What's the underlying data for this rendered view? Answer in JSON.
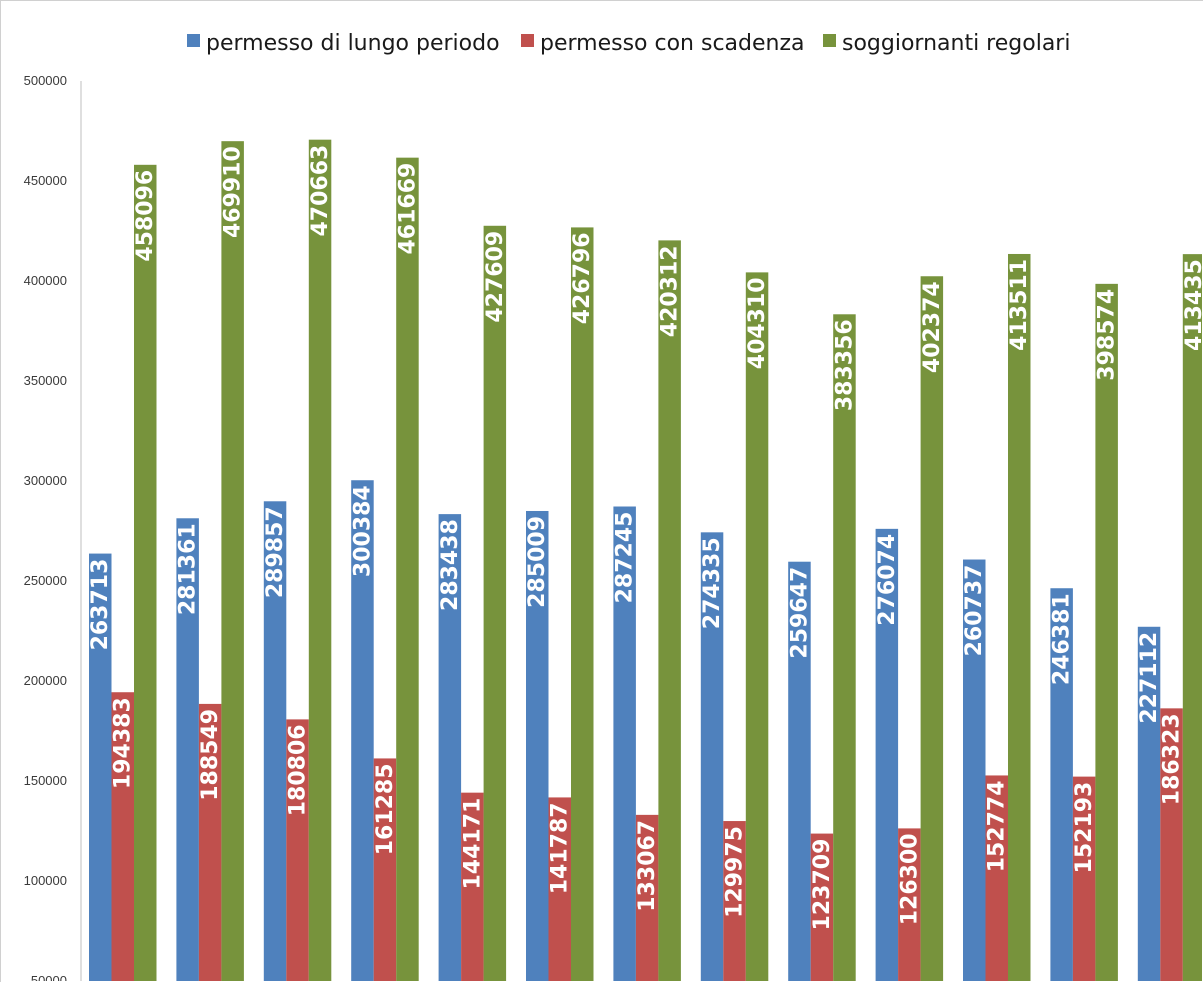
{
  "chart_data": {
    "type": "bar",
    "categories": [
      "",
      "",
      "",
      "",
      "",
      "",
      "",
      "",
      "",
      "",
      "",
      "",
      ""
    ],
    "series": [
      {
        "name": "permesso di lungo periodo",
        "color": "#4f81bd",
        "values": [
          263713,
          281361,
          289857,
          300384,
          283438,
          285009,
          287245,
          274335,
          259647,
          276074,
          260737,
          246381,
          227112
        ]
      },
      {
        "name": "permesso con scadenza",
        "color": "#c0504d",
        "values": [
          194383,
          188549,
          180806,
          161285,
          144171,
          141787,
          133067,
          129975,
          123709,
          126300,
          152774,
          152193,
          186323
        ]
      },
      {
        "name": "soggiornanti regolari",
        "color": "#77933c",
        "values": [
          458096,
          469910,
          470663,
          461669,
          427609,
          426796,
          420312,
          404310,
          383356,
          402374,
          413511,
          398574,
          413435
        ]
      }
    ],
    "yticks": [
      50000,
      100000,
      150000,
      200000,
      250000,
      300000,
      350000,
      400000,
      450000,
      500000
    ],
    "ylim": [
      0,
      500000
    ],
    "legend_position": "top",
    "grid": false,
    "data_labels": "inside-end-rotated"
  }
}
